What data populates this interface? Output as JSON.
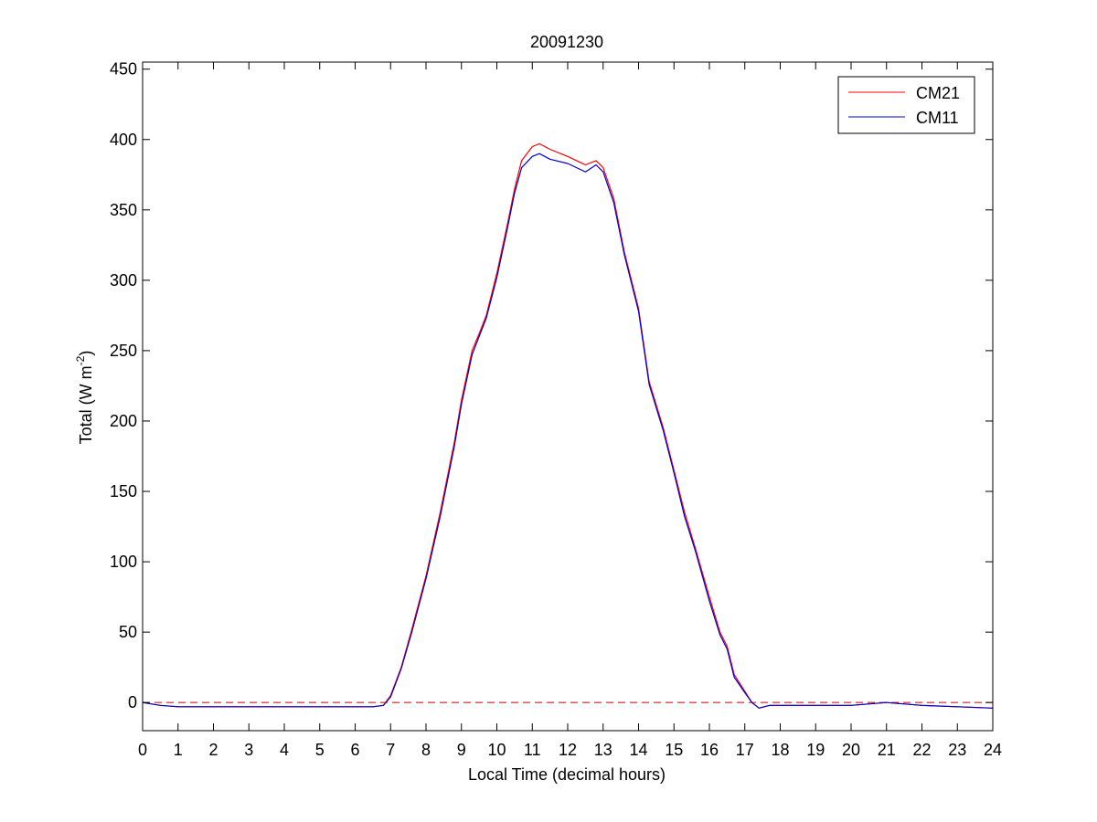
{
  "chart_data": {
    "type": "line",
    "title": "20091230",
    "xlabel": "Local Time (decimal hours)",
    "ylabel_main": "Total (W m",
    "ylabel_sup": "-2",
    "ylabel_close": ")",
    "xlim": [
      0,
      24
    ],
    "ylim": [
      -20,
      455
    ],
    "xticks": [
      0,
      1,
      2,
      3,
      4,
      5,
      6,
      7,
      8,
      9,
      10,
      11,
      12,
      13,
      14,
      15,
      16,
      17,
      18,
      19,
      20,
      21,
      22,
      23,
      24
    ],
    "yticks": [
      0,
      50,
      100,
      150,
      200,
      250,
      300,
      350,
      400,
      450
    ],
    "grid": false,
    "legend_position": "top-right",
    "reference_line": {
      "y": 0,
      "style": "dashed",
      "color": "#cc0000"
    },
    "series": [
      {
        "name": "CM21",
        "color": "#ff0000",
        "x": [
          0,
          0.5,
          1,
          2,
          3,
          4,
          5,
          6,
          6.5,
          6.8,
          7.0,
          7.3,
          7.6,
          8.0,
          8.4,
          8.8,
          9.0,
          9.3,
          9.5,
          9.7,
          10.0,
          10.3,
          10.5,
          10.7,
          11.0,
          11.2,
          11.5,
          12.0,
          12.5,
          12.8,
          13.0,
          13.3,
          13.6,
          14.0,
          14.3,
          14.7,
          15.0,
          15.3,
          15.6,
          16.0,
          16.3,
          16.5,
          16.7,
          17.0,
          17.2,
          17.4,
          17.7,
          18,
          19,
          20,
          21,
          22,
          23,
          24
        ],
        "y": [
          0,
          -2,
          -3,
          -3,
          -3,
          -3,
          -3,
          -3,
          -3,
          -2,
          5,
          25,
          52,
          90,
          135,
          185,
          215,
          250,
          262,
          275,
          305,
          340,
          365,
          385,
          395,
          397,
          393,
          388,
          382,
          385,
          380,
          358,
          320,
          280,
          228,
          195,
          165,
          135,
          110,
          75,
          50,
          40,
          20,
          8,
          0,
          -4,
          -2,
          -2,
          -2,
          -2,
          0,
          -2,
          -3,
          -4
        ]
      },
      {
        "name": "CM11",
        "color": "#0000cc",
        "x": [
          0,
          0.5,
          1,
          2,
          3,
          4,
          5,
          6,
          6.5,
          6.8,
          7.0,
          7.3,
          7.6,
          8.0,
          8.4,
          8.8,
          9.0,
          9.3,
          9.5,
          9.7,
          10.0,
          10.3,
          10.5,
          10.7,
          11.0,
          11.2,
          11.5,
          12.0,
          12.5,
          12.8,
          13.0,
          13.3,
          13.6,
          14.0,
          14.3,
          14.7,
          15.0,
          15.3,
          15.6,
          16.0,
          16.3,
          16.5,
          16.7,
          17.0,
          17.2,
          17.4,
          17.7,
          18,
          19,
          20,
          21,
          22,
          23,
          24
        ],
        "y": [
          0,
          -2,
          -3,
          -3,
          -3,
          -3,
          -3,
          -3,
          -3,
          -2,
          4,
          24,
          50,
          88,
          132,
          182,
          212,
          247,
          260,
          273,
          302,
          337,
          362,
          380,
          388,
          390,
          386,
          383,
          377,
          382,
          377,
          355,
          318,
          278,
          226,
          193,
          163,
          132,
          108,
          72,
          48,
          38,
          18,
          7,
          0,
          -4,
          -2,
          -2,
          -2,
          -2,
          0,
          -2,
          -3,
          -4
        ]
      }
    ]
  }
}
